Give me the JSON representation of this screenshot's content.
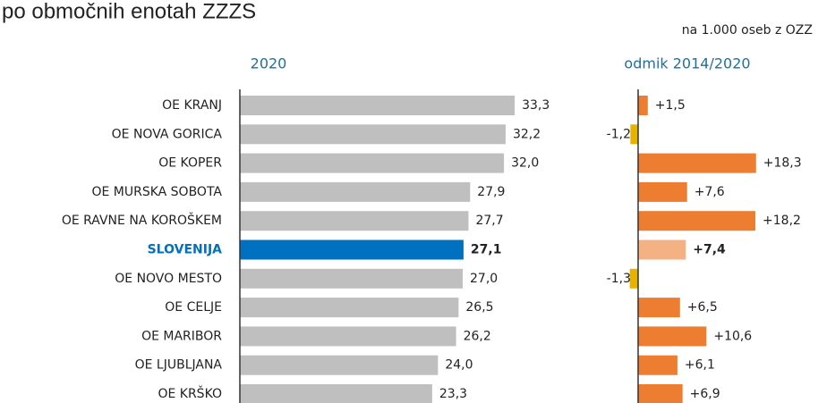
{
  "title": "po območnih enotah ZZZS",
  "unit_note": "na 1.000 oseb z OZZ",
  "label_highlight_color": "#0070c0",
  "chart_data": [
    {
      "type": "hbar",
      "title": "2020",
      "categories": [
        "OE KRANJ",
        "OE NOVA GORICA",
        "OE KOPER",
        "OE MURSKA SOBOTA",
        "OE RAVNE NA KOROŠKEM",
        "SLOVENIJA",
        "OE NOVO MESTO",
        "OE CELJE",
        "OE MARIBOR",
        "OE LJUBLJANA",
        "OE KRŠKO"
      ],
      "values": [
        33.3,
        32.2,
        32.0,
        27.9,
        27.7,
        27.1,
        27.0,
        26.5,
        26.2,
        24.0,
        23.3
      ],
      "value_labels": [
        "33,3",
        "32,2",
        "32,0",
        "27,9",
        "27,7",
        "27,1",
        "27,0",
        "26,5",
        "26,2",
        "24,0",
        "23,3"
      ],
      "colors": [
        "#bfbfbf",
        "#bfbfbf",
        "#bfbfbf",
        "#bfbfbf",
        "#bfbfbf",
        "#0070c0",
        "#bfbfbf",
        "#bfbfbf",
        "#bfbfbf",
        "#bfbfbf",
        "#bfbfbf"
      ],
      "xlim": [
        0,
        36
      ]
    },
    {
      "type": "hbar",
      "title": "odmik 2014/2020",
      "values": [
        1.5,
        -1.2,
        18.3,
        7.6,
        18.2,
        7.4,
        -1.3,
        6.5,
        10.6,
        6.1,
        6.9
      ],
      "value_labels": [
        "+1,5",
        "-1,2",
        "+18,3",
        "+7,6",
        "+18,2",
        "+7,4",
        "-1,3",
        "+6,5",
        "+10,6",
        "+6,1",
        "+6,9"
      ],
      "colors": [
        "#ed7d31",
        "#e6b400",
        "#ed7d31",
        "#ed7d31",
        "#ed7d31",
        "#f4b183",
        "#e6b400",
        "#ed7d31",
        "#ed7d31",
        "#ed7d31",
        "#ed7d31"
      ],
      "xlim": [
        -3,
        25
      ]
    }
  ]
}
